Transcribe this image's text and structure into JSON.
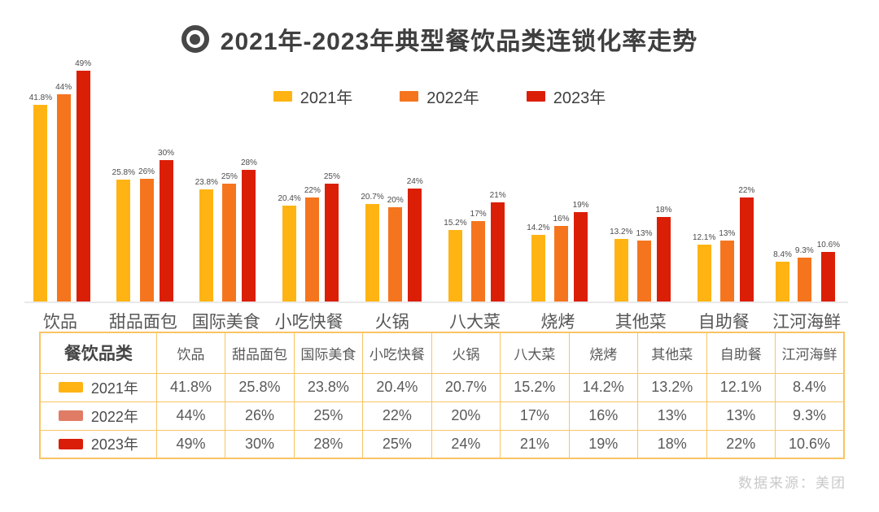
{
  "title": "2021年-2023年典型餐饮品类连锁化率走势",
  "title_icon": "bullseye-icon",
  "chart_data": {
    "type": "bar",
    "title": "2021年-2023年典型餐饮品类连锁化率走势",
    "categories": [
      "饮品",
      "甜品面包",
      "国际美食",
      "小吃快餐",
      "火锅",
      "八大菜",
      "烧烤",
      "其他菜",
      "自助餐",
      "江河海鲜"
    ],
    "series": [
      {
        "name": "2021年",
        "color": "#FFB414",
        "values": [
          41.8,
          25.8,
          23.8,
          20.4,
          20.7,
          15.2,
          14.2,
          13.2,
          12.1,
          8.4
        ],
        "labels": [
          "41.8%",
          "25.8%",
          "23.8%",
          "20.4%",
          "20.7%",
          "15.2%",
          "14.2%",
          "13.2%",
          "12.1%",
          "8.4%"
        ]
      },
      {
        "name": "2022年",
        "color": "#F5751E",
        "values": [
          44,
          26,
          25,
          22,
          20,
          17,
          16,
          13,
          13,
          9.3
        ],
        "labels": [
          "44%",
          "26%",
          "25%",
          "22%",
          "20%",
          "17%",
          "16%",
          "13%",
          "13%",
          "9.3%"
        ]
      },
      {
        "name": "2023年",
        "color": "#DB1F06",
        "values": [
          49,
          30,
          28,
          25,
          24,
          21,
          19,
          18,
          22,
          10.6
        ],
        "labels": [
          "49%",
          "30%",
          "28%",
          "25%",
          "24%",
          "21%",
          "19%",
          "18%",
          "22%",
          "10.6%"
        ]
      }
    ],
    "ylim": [
      0,
      50
    ],
    "grid": false,
    "legend_position": "top-center",
    "xlabel": "",
    "ylabel": ""
  },
  "table": {
    "corner_label": "餐饮品类",
    "row_swatches": [
      "#FFB414",
      "#E07C66",
      "#D91D09"
    ]
  },
  "footer": {
    "source": "数据来源：美团"
  }
}
